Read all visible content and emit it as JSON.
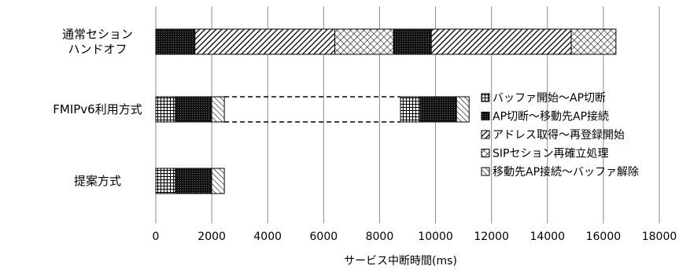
{
  "chart_data": {
    "type": "bar",
    "orientation": "horizontal",
    "stacked": true,
    "xlabel": "サービス中断時間(ms)",
    "xlim": [
      0,
      18000
    ],
    "xticks": [
      0,
      2000,
      4000,
      6000,
      8000,
      10000,
      12000,
      14000,
      16000,
      18000
    ],
    "grid": "vertical",
    "legend_position": "right",
    "series_types": [
      {
        "id": "buffer-start",
        "name": "バッファ開始〜AP切断",
        "pattern": "grid"
      },
      {
        "id": "ap-cut",
        "name": "AP切断〜移動先AP接続",
        "pattern": "dense-cross"
      },
      {
        "id": "address",
        "name": "アドレス取得〜再登録開始",
        "pattern": "diagonal"
      },
      {
        "id": "sip",
        "name": "SIPセション再確立処理",
        "pattern": "cross"
      },
      {
        "id": "buffer-release",
        "name": "移動先AP接続〜バッファ解除",
        "pattern": "reverse-diagonal"
      }
    ],
    "categories": [
      {
        "label": "通常セション\nハンドオフ",
        "segments": [
          {
            "type": "ap-cut",
            "start": 0,
            "end": 1400
          },
          {
            "type": "address",
            "start": 1400,
            "end": 6400
          },
          {
            "type": "sip",
            "start": 6400,
            "end": 8500
          },
          {
            "type": "ap-cut",
            "start": 8500,
            "end": 9850
          },
          {
            "type": "address",
            "start": 9850,
            "end": 14850
          },
          {
            "type": "sip",
            "start": 14850,
            "end": 16450
          }
        ]
      },
      {
        "label": "FMIPv6利用方式",
        "segments": [
          {
            "type": "buffer-start",
            "start": 0,
            "end": 700
          },
          {
            "type": "ap-cut",
            "start": 700,
            "end": 2000
          },
          {
            "type": "buffer-release",
            "start": 2000,
            "end": 2450
          },
          {
            "type": "buffer-start",
            "start": 8750,
            "end": 9450
          },
          {
            "type": "ap-cut",
            "start": 9450,
            "end": 10750
          },
          {
            "type": "buffer-release",
            "start": 10750,
            "end": 11200
          }
        ],
        "dashed_gap": [
          2450,
          8750
        ]
      },
      {
        "label": "提案方式",
        "segments": [
          {
            "type": "buffer-start",
            "start": 0,
            "end": 700
          },
          {
            "type": "ap-cut",
            "start": 700,
            "end": 2000
          },
          {
            "type": "buffer-release",
            "start": 2000,
            "end": 2450
          }
        ]
      }
    ]
  }
}
